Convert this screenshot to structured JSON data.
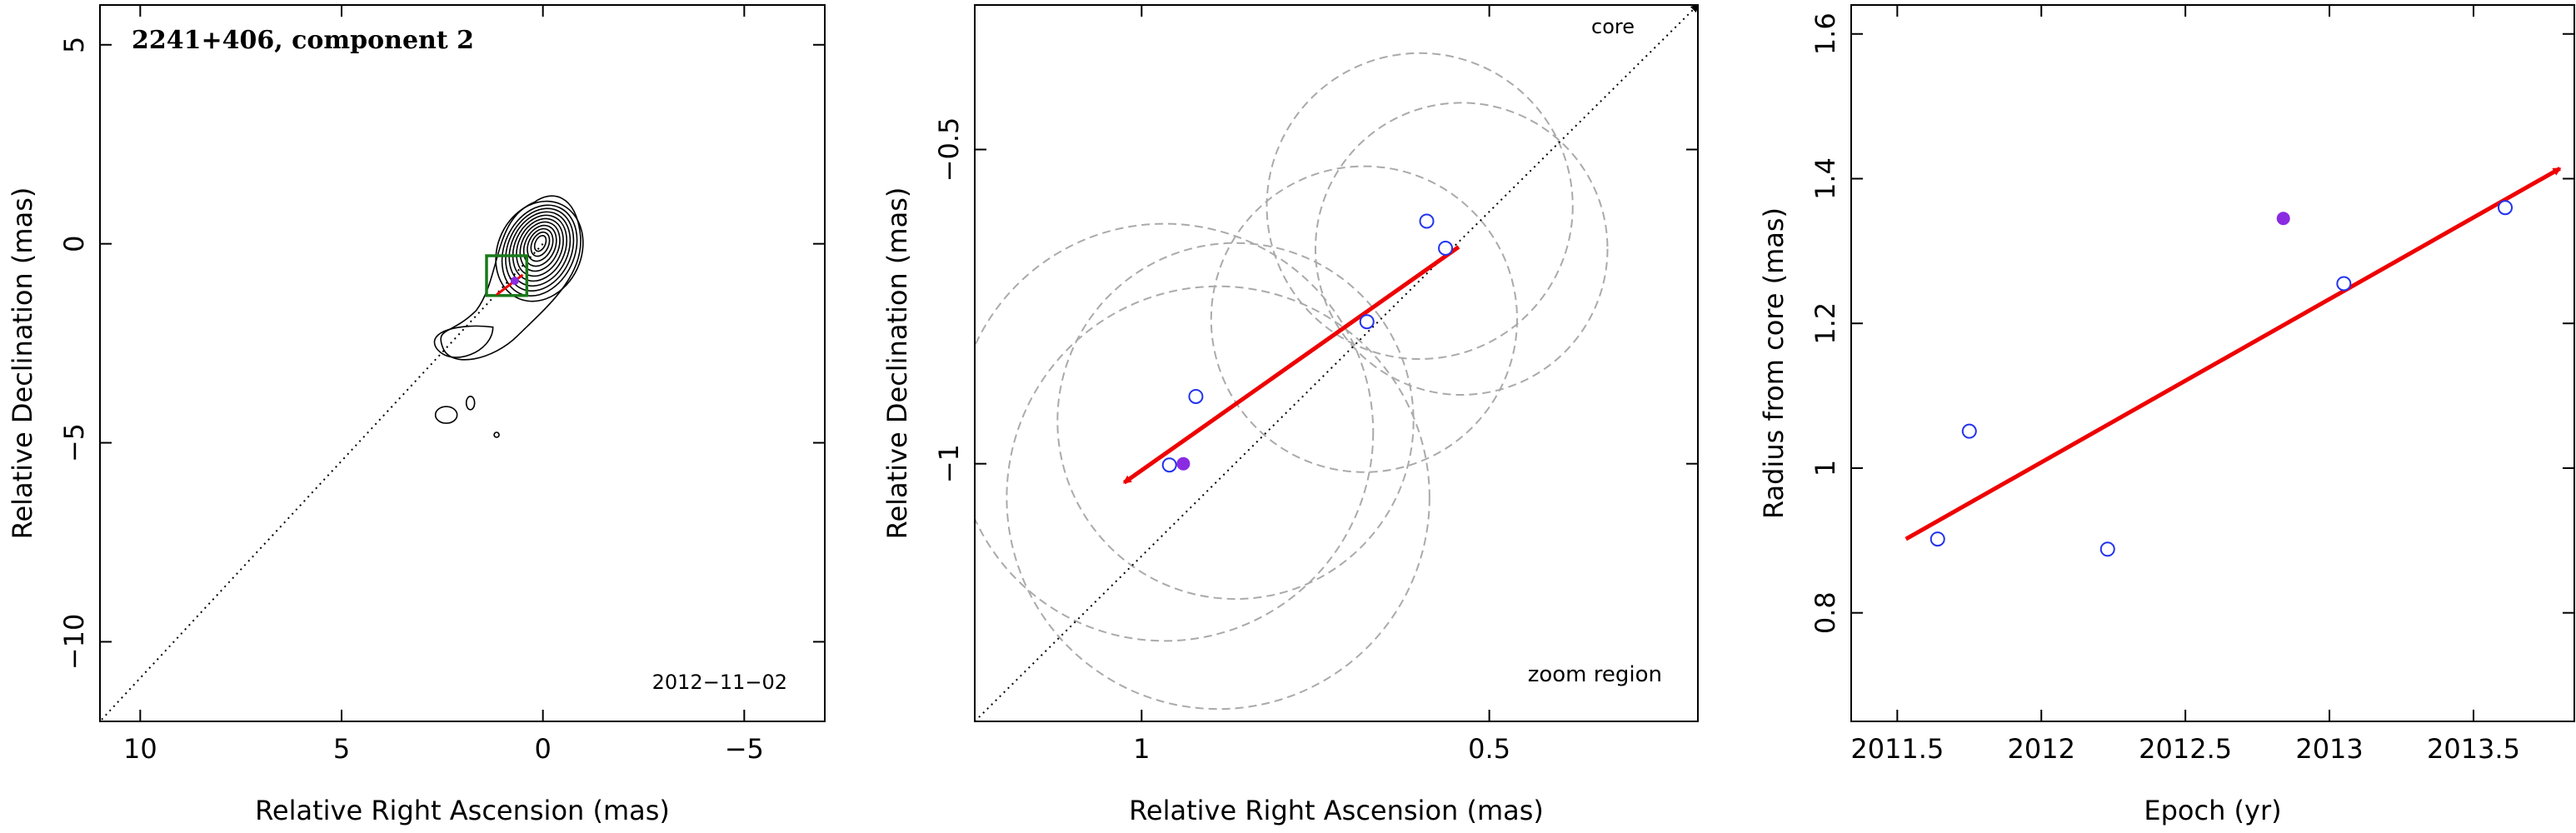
{
  "colors": {
    "fit_arrow": "#ee0000",
    "open_marker": "#2233ee",
    "filled_marker": "#8a2be2",
    "circles": "#aaaaaa",
    "zoom_box": "#1a7a1a",
    "contour": "#000000"
  },
  "chart_data": [
    {
      "type": "scatter",
      "panel": "sky map with contours",
      "title": "2241+406, component 2",
      "date_label": "2012−11−02",
      "xlabel": "Relative Right Ascension (mas)",
      "ylabel": "Relative Declination (mas)",
      "xlim": [
        11,
        -7
      ],
      "ylim": [
        -12,
        6
      ],
      "xticks": [
        10,
        5,
        0,
        -5
      ],
      "xtick_labels": [
        "10",
        "5",
        "0",
        "−5"
      ],
      "yticks": [
        5,
        0,
        -5,
        -10
      ],
      "ytick_labels": [
        "5",
        "0",
        "−5",
        "−10"
      ],
      "contours": "contour map of source brightness, core near (0, 0), jet extending to the south-east",
      "jet_axis_line": {
        "from": [
          0,
          0
        ],
        "to": [
          11,
          -12
        ],
        "style": "dotted"
      },
      "zoom_box": {
        "ra": [
          1.4,
          0.4
        ],
        "dec": [
          -1.3,
          -0.3
        ]
      },
      "component_positions": [
        {
          "ra": 0.7,
          "dec": -0.93
        }
      ]
    },
    {
      "type": "scatter",
      "panel": "zoom region",
      "xlabel": "Relative Right Ascension (mas)",
      "ylabel": "Relative Declination (mas)",
      "region_label": "zoom region",
      "core_label": "core",
      "xlim": [
        1.24,
        0.2
      ],
      "ylim": [
        -1.41,
        -0.27
      ],
      "xticks": [
        1,
        0.5
      ],
      "xtick_labels": [
        "1",
        "0.5"
      ],
      "yticks": [
        -0.5,
        -1
      ],
      "ytick_labels": [
        "−0.5",
        "−1"
      ],
      "open_points": [
        {
          "ra": 0.922,
          "dec": -0.893
        },
        {
          "ra": 0.676,
          "dec": -0.774
        },
        {
          "ra": 0.563,
          "dec": -0.657
        },
        {
          "ra": 0.59,
          "dec": -0.614
        },
        {
          "ra": 0.96,
          "dec": -1.002
        }
      ],
      "filled_points": [
        {
          "ra": 0.94,
          "dec": -1.0
        }
      ],
      "error_circles": [
        {
          "ra": 0.54,
          "dec": -0.658,
          "r": 0.21
        },
        {
          "ra": 0.6,
          "dec": -0.59,
          "r": 0.22
        },
        {
          "ra": 0.68,
          "dec": -0.77,
          "r": 0.22
        },
        {
          "ra": 0.865,
          "dec": -0.932,
          "r": 0.256
        },
        {
          "ra": 0.967,
          "dec": -0.95,
          "r": 0.3
        },
        {
          "ra": 0.89,
          "dec": -1.054,
          "r": 0.304
        }
      ],
      "fit_arrow": {
        "from": [
          0.544,
          -0.655
        ],
        "to": [
          1.025,
          -1.03
        ]
      },
      "jet_axis_line": {
        "from": [
          1.24,
          -1.41
        ],
        "to": [
          0.2,
          -0.27
        ]
      }
    },
    {
      "type": "scatter",
      "panel": "radius vs epoch",
      "xlabel": "Epoch (yr)",
      "ylabel": "Radius from core (mas)",
      "xlim": [
        2011.34,
        2013.85
      ],
      "ylim": [
        0.65,
        1.64
      ],
      "xticks": [
        2011.5,
        2012,
        2012.5,
        2013,
        2013.5
      ],
      "xtick_labels": [
        "2011.5",
        "2012",
        "2012.5",
        "2013",
        "2013.5"
      ],
      "yticks": [
        0.8,
        1,
        1.2,
        1.4,
        1.6
      ],
      "ytick_labels": [
        "0.8",
        "1",
        "1.2",
        "1.4",
        "1.6"
      ],
      "open_points": [
        {
          "x": 2011.64,
          "y": 0.902
        },
        {
          "x": 2011.75,
          "y": 1.051
        },
        {
          "x": 2012.23,
          "y": 0.888
        },
        {
          "x": 2013.05,
          "y": 1.255
        },
        {
          "x": 2013.61,
          "y": 1.36
        }
      ],
      "filled_points": [
        {
          "x": 2012.84,
          "y": 1.345
        }
      ],
      "fit_arrow": {
        "from": [
          2011.53,
          0.902
        ],
        "to": [
          2013.8,
          1.414
        ]
      }
    }
  ]
}
